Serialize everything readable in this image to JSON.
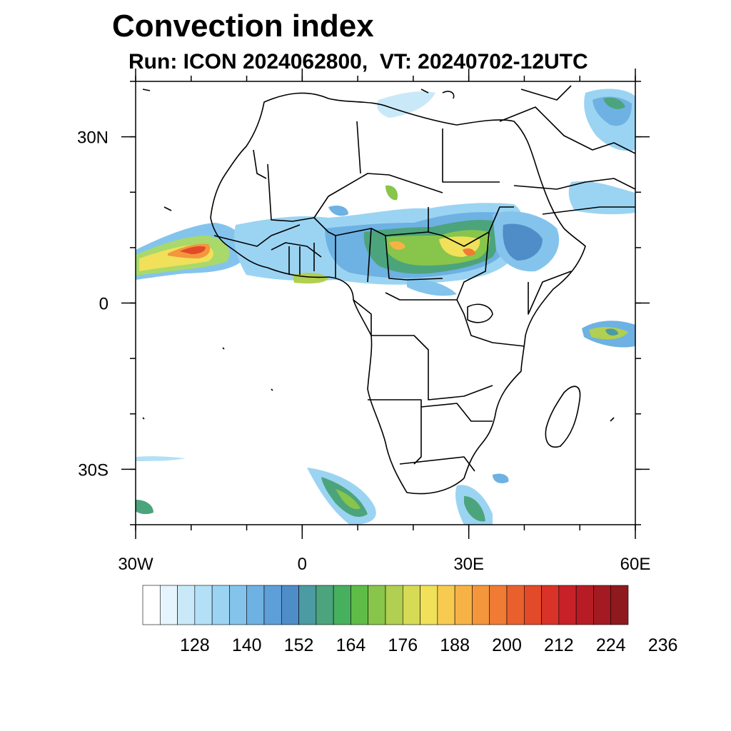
{
  "title": "Convection index",
  "subtitle": "Run: ICON 2024062800,  VT: 20240702-12UTC",
  "map": {
    "region": "Africa",
    "lon_range": [
      -30,
      60
    ],
    "lat_range": [
      -40,
      40
    ],
    "x_ticks": [
      {
        "value": -30,
        "label": "30W"
      },
      {
        "value": 0,
        "label": "0"
      },
      {
        "value": 30,
        "label": "30E"
      },
      {
        "value": 60,
        "label": "60E"
      }
    ],
    "y_ticks": [
      {
        "value": 30,
        "label": "30N"
      },
      {
        "value": 0,
        "label": "0"
      },
      {
        "value": -30,
        "label": "30S"
      }
    ],
    "field": "convection index"
  },
  "colorbar": {
    "colors": [
      "#ffffff",
      "#e6f5fd",
      "#c9e9f8",
      "#b3e0f6",
      "#9bd4f2",
      "#84c4ec",
      "#6eb1e3",
      "#5e9fd8",
      "#4f8dc9",
      "#4c9aa2",
      "#4ca47c",
      "#46b05e",
      "#5ebc47",
      "#88c54b",
      "#b1cf50",
      "#d6db56",
      "#f0e05a",
      "#f7cb4f",
      "#f7b246",
      "#f3963c",
      "#ef7b35",
      "#e9602e",
      "#e24a2a",
      "#d93228",
      "#c82128",
      "#b71c25",
      "#a31a22",
      "#8e1a1e"
    ],
    "labels": [
      "128",
      "140",
      "152",
      "164",
      "176",
      "188",
      "200",
      "212",
      "224",
      "236"
    ]
  }
}
